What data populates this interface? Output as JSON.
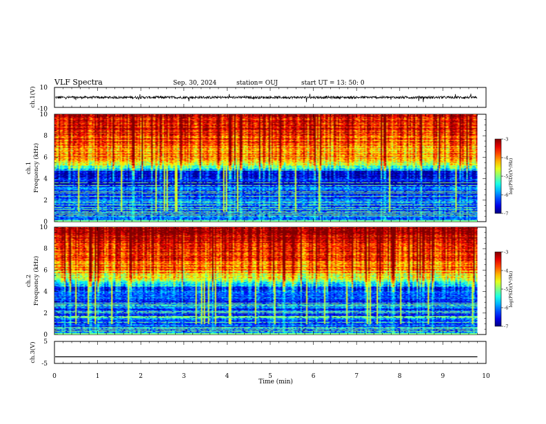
{
  "header": {
    "title": "VLF Spectra",
    "date": "Sep. 30, 2024",
    "station": "station= OUJ",
    "start": "start  UT  =   13: 50: 0"
  },
  "chart_data": {
    "type": "heatmap",
    "xlabel": "Time  (min)",
    "xlim": [
      0,
      10
    ],
    "x_ticks": [
      "0",
      "1",
      "2",
      "3",
      "4",
      "5",
      "6",
      "7",
      "8",
      "9",
      "10"
    ],
    "panels": [
      {
        "name": "ch1-waveform",
        "type": "line",
        "ylabel": "ch.1(V)",
        "ylim": [
          -10,
          10
        ],
        "y_ticks": [
          "10",
          "-10"
        ],
        "baseline": 0,
        "data_end_min": 9.8
      },
      {
        "name": "ch1-spectrogram",
        "type": "heatmap",
        "ylabel_line1": "ch.1",
        "ylabel_line2": "Frequency  (kHz)",
        "ylim": [
          0,
          10
        ],
        "y_ticks": [
          "0",
          "2",
          "4",
          "6",
          "8",
          "10"
        ],
        "data_end_min": 9.8,
        "colorbar": {
          "label": "log(PSD)(V²/Hz)",
          "min": -7,
          "max": -3,
          "ticks": [
            "-3",
            "-4",
            "-5",
            "-6",
            "-7"
          ]
        }
      },
      {
        "name": "ch2-spectrogram",
        "type": "heatmap",
        "ylabel_line1": "ch.2",
        "ylabel_line2": "Frequency  (kHz)",
        "ylim": [
          0,
          10
        ],
        "y_ticks": [
          "0",
          "2",
          "4",
          "6",
          "8",
          "10"
        ],
        "data_end_min": 9.8,
        "colorbar": {
          "label": "log(PSD)(V²/Hz)",
          "min": -7,
          "max": -3,
          "ticks": [
            "-3",
            "-4",
            "-5",
            "-6",
            "-7"
          ]
        }
      },
      {
        "name": "ch3-waveform",
        "type": "line",
        "ylabel": "ch.3(V)",
        "ylim": [
          -5,
          5
        ],
        "y_ticks": [
          "5",
          "-5"
        ],
        "baseline": -2,
        "data_end_min": 9.8
      }
    ]
  }
}
